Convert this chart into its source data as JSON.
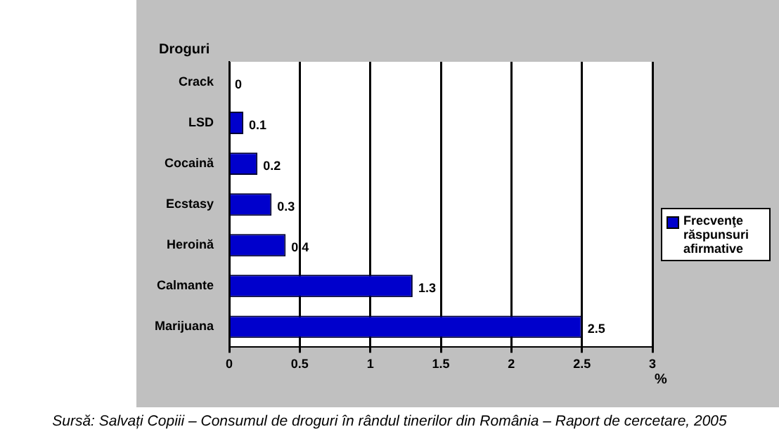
{
  "chart_data": {
    "type": "bar",
    "orientation": "horizontal",
    "ylabel": "Droguri",
    "xlabel": "%",
    "categories": [
      "Crack",
      "LSD",
      "Cocaină",
      "Ecstasy",
      "Heroină",
      "Calmante",
      "Marijuana"
    ],
    "series": [
      {
        "name": "Frecvenţe răspunsuri afirmative",
        "color": "#0000cc",
        "values": [
          0,
          0.1,
          0.2,
          0.3,
          0.4,
          1.3,
          2.5
        ]
      }
    ],
    "xlim": [
      0,
      3
    ],
    "xticks": [
      0,
      0.5,
      1,
      1.5,
      2,
      2.5,
      3
    ],
    "grid": "x",
    "legend": "right",
    "data_labels": true,
    "annotations": [
      "Sursă: Salvați Copiii – Consumul de droguri în rândul tinerilor din România – Raport de cercetare, 2005"
    ]
  }
}
